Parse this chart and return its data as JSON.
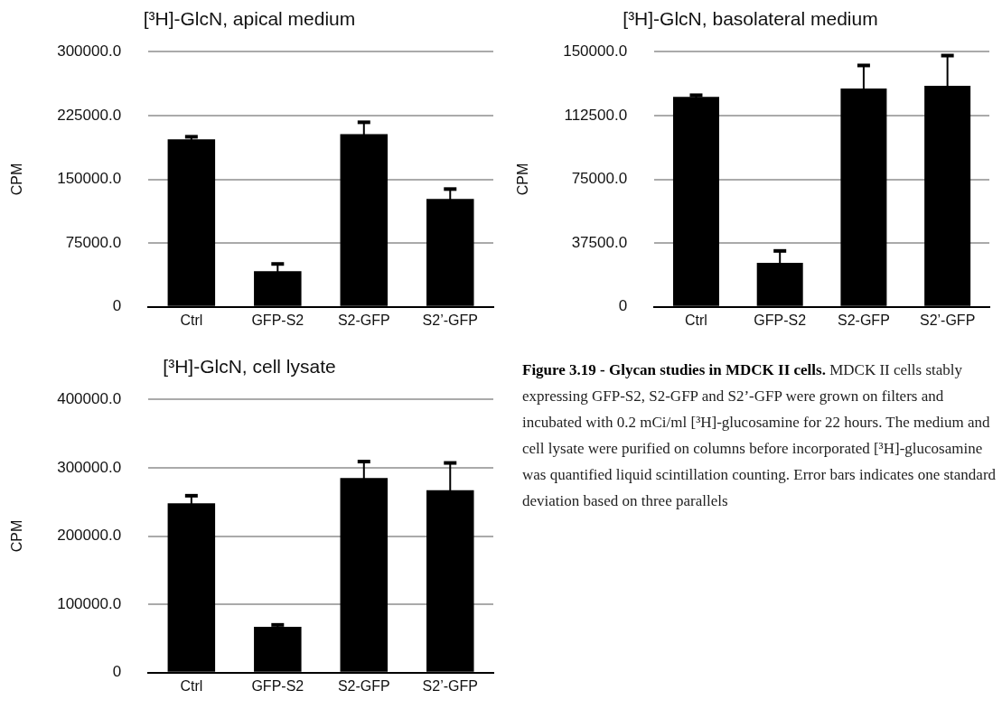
{
  "chart_data": [
    {
      "type": "bar",
      "title": "[³H]-GlcN, apical medium",
      "ylabel": "CPM",
      "categories": [
        "Ctrl",
        "GFP-S2",
        "S2-GFP",
        "S2’-GFP"
      ],
      "color": "#000000",
      "values": [
        197000,
        42000,
        203000,
        127000
      ],
      "errors": [
        3000,
        8500,
        14000,
        11500
      ],
      "ylim": [
        0,
        300000
      ],
      "yticks": [
        {
          "value": 0,
          "label": "0"
        },
        {
          "value": 75000,
          "label": "75000.0"
        },
        {
          "value": 150000,
          "label": "150000.0"
        },
        {
          "value": 225000,
          "label": "225000.0"
        },
        {
          "value": 300000,
          "label": "300000.0"
        }
      ],
      "grid": "y",
      "legend": false
    },
    {
      "type": "bar",
      "title": "[³H]-GlcN, basolateral medium",
      "ylabel": "CPM",
      "categories": [
        "Ctrl",
        "GFP-S2",
        "S2-GFP",
        "S2’-GFP"
      ],
      "color": "#000000",
      "values": [
        123400,
        25900,
        128300,
        129900
      ],
      "errors": [
        1000,
        7000,
        13600,
        17800
      ],
      "ylim": [
        0,
        150000
      ],
      "yticks": [
        {
          "value": 0,
          "label": "0"
        },
        {
          "value": 37500,
          "label": "37500.0"
        },
        {
          "value": 75000,
          "label": "75000.0"
        },
        {
          "value": 112500,
          "label": "112500.0"
        },
        {
          "value": 150000,
          "label": "150000.0"
        }
      ],
      "grid": "y",
      "legend": false
    },
    {
      "type": "bar",
      "title": "[³H]-GlcN, cell lysate",
      "ylabel": "CPM",
      "categories": [
        "Ctrl",
        "GFP-S2",
        "S2-GFP",
        "S2’-GFP"
      ],
      "color": "#000000",
      "values": [
        248000,
        67000,
        285000,
        267000
      ],
      "errors": [
        11000,
        3000,
        24000,
        40000
      ],
      "ylim": [
        0,
        400000
      ],
      "yticks": [
        {
          "value": 0,
          "label": "0"
        },
        {
          "value": 100000,
          "label": "100000.0"
        },
        {
          "value": 200000,
          "label": "200000.0"
        },
        {
          "value": 300000,
          "label": "300000.0"
        },
        {
          "value": 400000,
          "label": "400000.0"
        }
      ],
      "grid": "y",
      "legend": false
    },
    {
      "type": "other",
      "title": "Figure 3.19 - Glycan studies in MDCK II cells.",
      "annotations": [
        "MDCK II cells stably expressing GFP-S2, S2-GFP and S2’-GFP were grown on filters and incubated with 0.2 mCi/ml [³H]-glucosamine for 22 hours. The medium and cell lysate were purified on columns before incorporated [³H]-glucosamine was quantified liquid scintillation counting. Error bars indicates one standard deviation based on three parallels"
      ]
    }
  ]
}
